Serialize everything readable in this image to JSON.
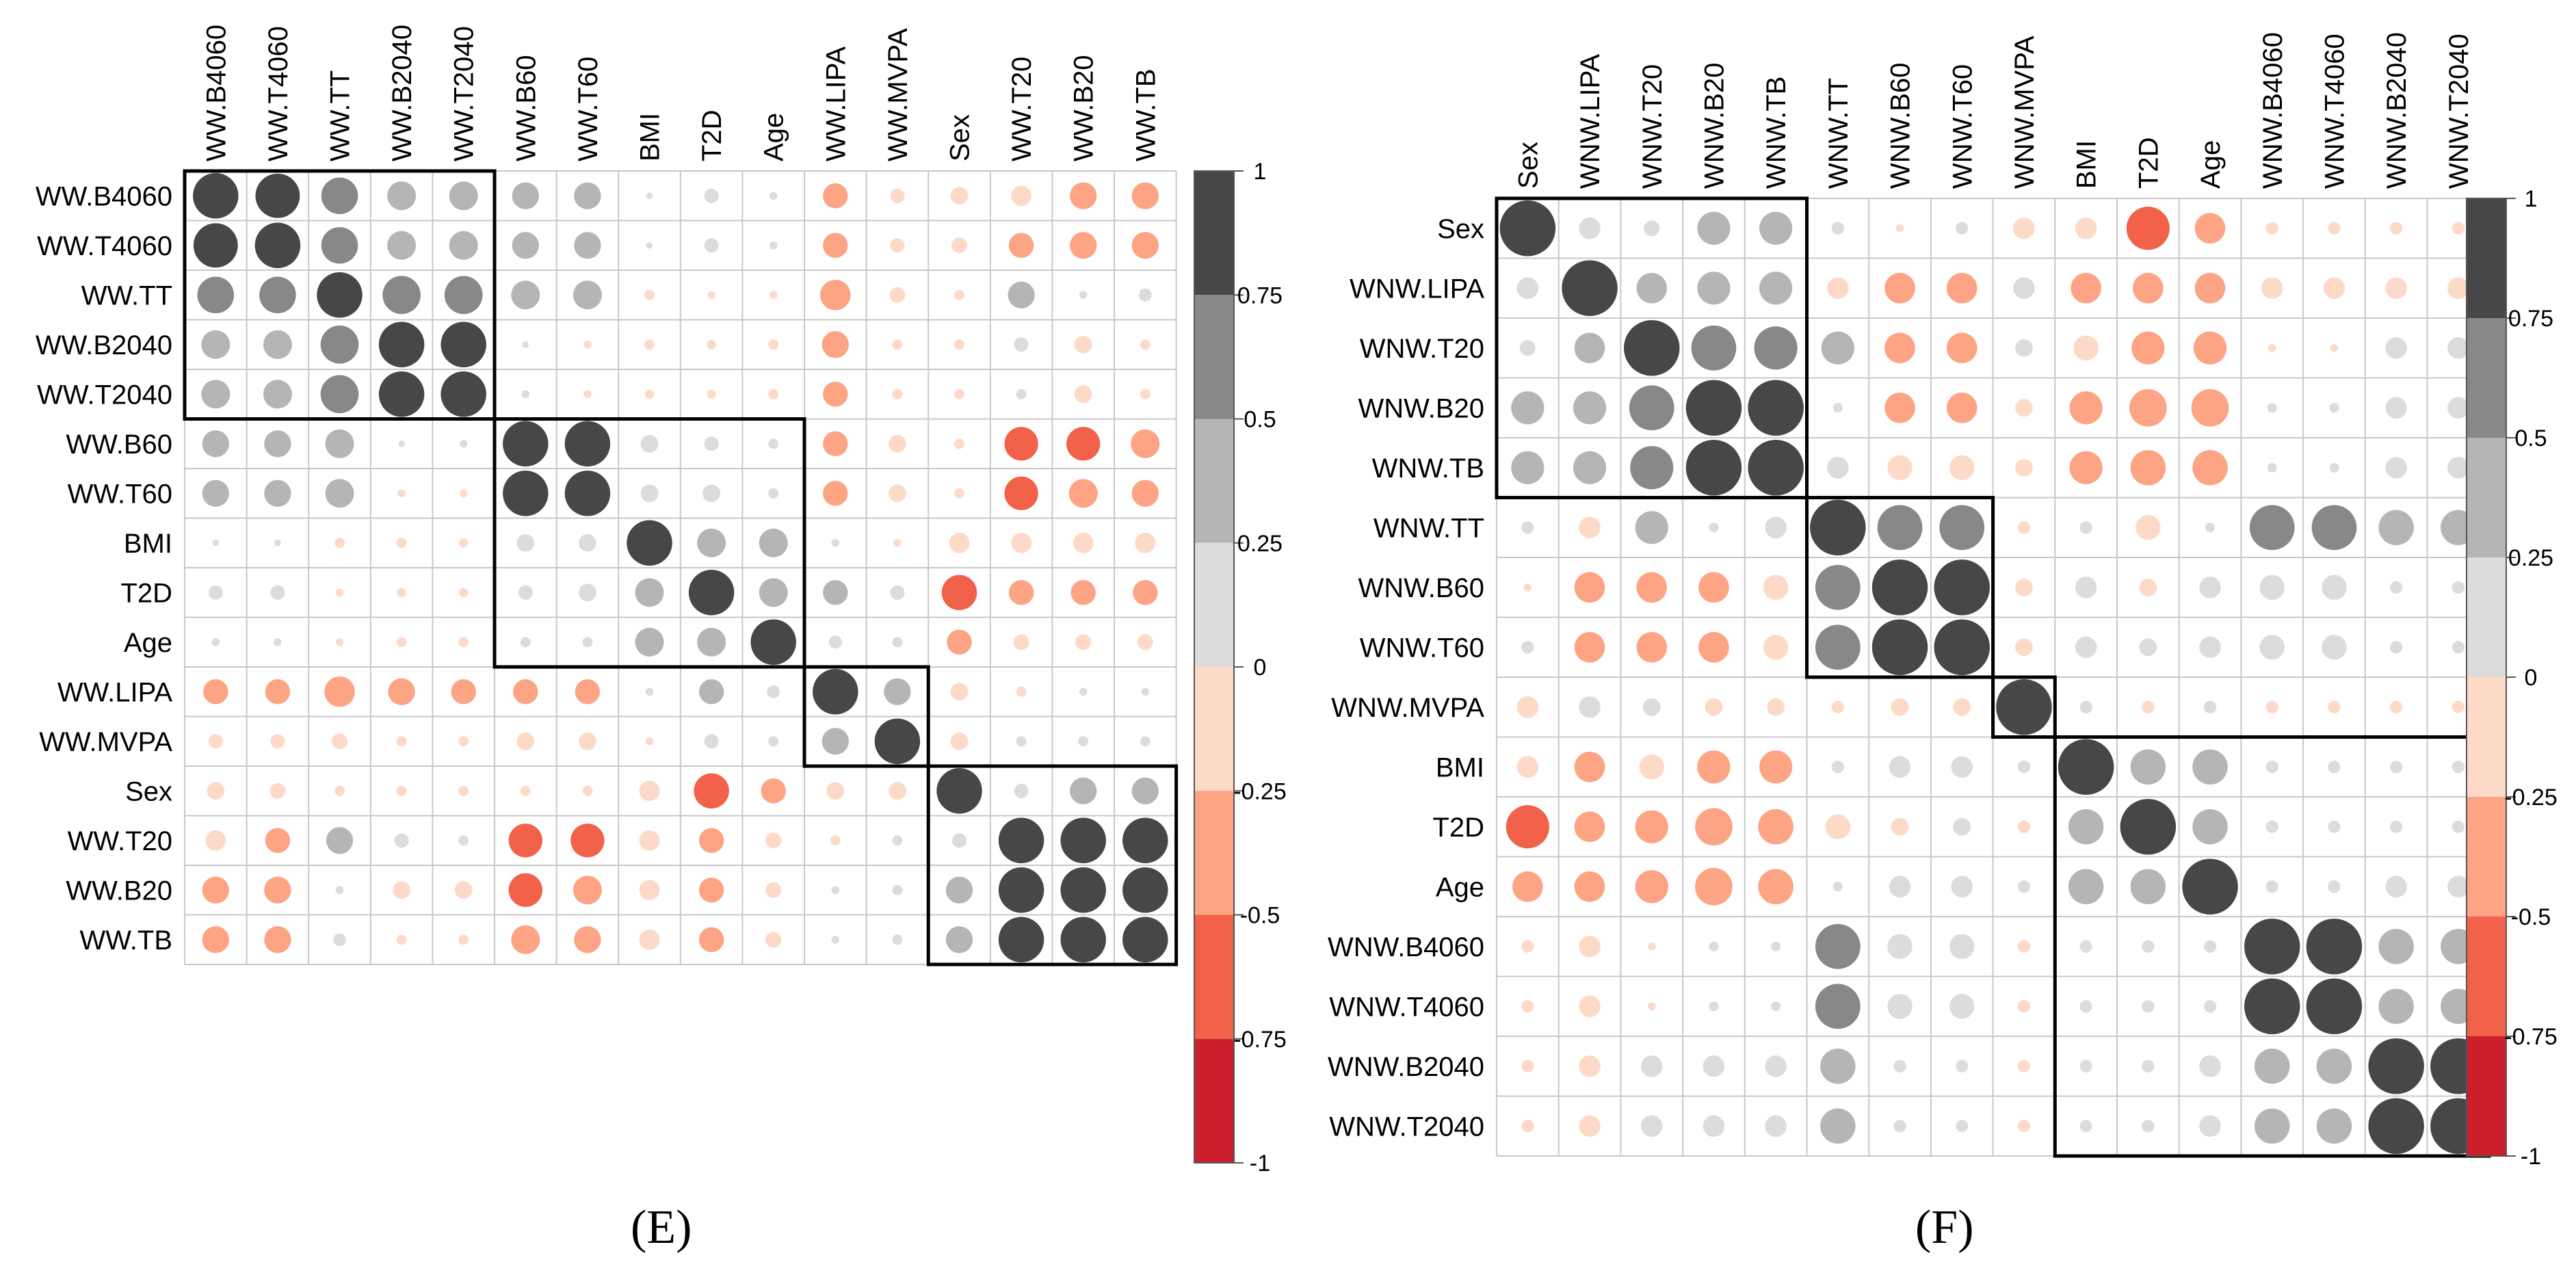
{
  "chart_data": [
    {
      "type": "heatmap",
      "subtype": "correlation-circle-plot",
      "panel": "E",
      "labels": [
        "WW.B4060",
        "WW.T4060",
        "WW.TT",
        "WW.B2040",
        "WW.T2040",
        "WW.B60",
        "WW.T60",
        "BMI",
        "T2D",
        "Age",
        "WW.LIPA",
        "WW.MVPA",
        "Sex",
        "WW.T20",
        "WW.B20",
        "WW.TB"
      ],
      "clusters": [
        [
          0,
          4
        ],
        [
          5,
          9
        ],
        [
          10,
          11
        ],
        [
          12,
          15
        ]
      ],
      "matrix": [
        [
          1,
          0.95,
          0.65,
          0.4,
          0.4,
          0.35,
          0.35,
          0.02,
          0.1,
          0.03,
          -0.3,
          -0.1,
          -0.15,
          -0.2,
          -0.35,
          -0.35
        ],
        [
          0.95,
          1,
          0.65,
          0.4,
          0.4,
          0.35,
          0.35,
          0.02,
          0.1,
          0.03,
          -0.3,
          -0.1,
          -0.12,
          -0.3,
          -0.35,
          -0.35
        ],
        [
          0.65,
          0.65,
          1,
          0.7,
          0.7,
          0.4,
          0.4,
          -0.05,
          -0.03,
          -0.03,
          -0.45,
          -0.12,
          -0.05,
          0.35,
          0.03,
          0.08
        ],
        [
          0.4,
          0.4,
          0.7,
          1,
          1,
          0.02,
          -0.03,
          -0.05,
          -0.04,
          -0.05,
          -0.35,
          -0.05,
          -0.05,
          0.1,
          -0.15,
          -0.05
        ],
        [
          0.4,
          0.4,
          0.7,
          1,
          1,
          0.03,
          -0.03,
          -0.04,
          -0.04,
          -0.05,
          -0.3,
          -0.05,
          -0.05,
          0.05,
          -0.15,
          -0.05
        ],
        [
          0.35,
          0.35,
          0.4,
          0.02,
          0.03,
          1,
          1,
          0.15,
          0.1,
          0.05,
          -0.3,
          -0.15,
          -0.05,
          -0.55,
          -0.55,
          -0.4
        ],
        [
          0.35,
          0.35,
          0.4,
          -0.03,
          -0.03,
          1,
          1,
          0.15,
          0.15,
          0.05,
          -0.3,
          -0.15,
          -0.05,
          -0.55,
          -0.4,
          -0.35
        ],
        [
          0.02,
          0.02,
          -0.05,
          -0.05,
          -0.04,
          0.15,
          0.15,
          1,
          0.4,
          0.4,
          0.03,
          -0.03,
          -0.2,
          -0.2,
          -0.2,
          -0.2
        ],
        [
          0.1,
          0.1,
          -0.03,
          -0.04,
          -0.04,
          0.1,
          0.15,
          0.4,
          1,
          0.4,
          0.3,
          0.1,
          -0.6,
          -0.3,
          -0.3,
          -0.3
        ],
        [
          0.03,
          0.03,
          -0.03,
          -0.05,
          -0.05,
          0.05,
          0.05,
          0.4,
          0.4,
          1,
          0.08,
          0.05,
          -0.3,
          -0.12,
          -0.12,
          -0.12
        ],
        [
          -0.3,
          -0.3,
          -0.45,
          -0.35,
          -0.3,
          -0.3,
          -0.3,
          0.03,
          0.3,
          0.08,
          1,
          0.35,
          -0.15,
          -0.05,
          0.03,
          0.03
        ],
        [
          -0.1,
          -0.1,
          -0.12,
          -0.05,
          -0.05,
          -0.15,
          -0.15,
          -0.03,
          0.1,
          0.05,
          0.35,
          1,
          -0.15,
          0.05,
          0.05,
          0.05
        ],
        [
          -0.15,
          -0.12,
          -0.05,
          -0.05,
          -0.05,
          -0.05,
          -0.05,
          -0.2,
          -0.6,
          -0.3,
          -0.15,
          -0.15,
          1,
          0.1,
          0.35,
          0.35
        ],
        [
          -0.2,
          -0.3,
          0.35,
          0.1,
          0.05,
          -0.55,
          -0.55,
          -0.2,
          -0.3,
          -0.12,
          -0.05,
          0.05,
          0.1,
          1,
          1,
          1
        ],
        [
          -0.35,
          -0.35,
          0.03,
          -0.15,
          -0.15,
          -0.55,
          -0.4,
          -0.2,
          -0.3,
          -0.12,
          0.03,
          0.05,
          0.35,
          1,
          1,
          1
        ],
        [
          -0.35,
          -0.35,
          0.08,
          -0.05,
          -0.05,
          -0.4,
          -0.35,
          -0.2,
          -0.3,
          -0.12,
          0.03,
          0.05,
          0.35,
          1,
          1,
          1
        ]
      ],
      "colorbar": {
        "ticks": [
          "1",
          "0.75",
          "0.5",
          "0.25",
          "0",
          "-0.25",
          "-0.5",
          "-0.75",
          "-1"
        ],
        "range": [
          -1,
          1
        ]
      },
      "caption": "(E)"
    },
    {
      "type": "heatmap",
      "subtype": "correlation-circle-plot",
      "panel": "F",
      "labels": [
        "Sex",
        "WNW.LIPA",
        "WNW.T20",
        "WNW.B20",
        "WNW.TB",
        "WNW.TT",
        "WNW.B60",
        "WNW.T60",
        "WNW.MVPA",
        "BMI",
        "T2D",
        "Age",
        "WNW.B4060",
        "WNW.T4060",
        "WNW.B2040",
        "WNW.T2040"
      ],
      "clusters": [
        [
          0,
          4
        ],
        [
          5,
          7
        ],
        [
          8,
          8
        ],
        [
          9,
          15
        ]
      ],
      "matrix": [
        [
          1,
          0.15,
          0.08,
          0.35,
          0.35,
          0.05,
          -0.02,
          0.05,
          -0.15,
          -0.15,
          -0.6,
          -0.3,
          -0.05,
          -0.05,
          -0.05,
          -0.05
        ],
        [
          0.15,
          1,
          0.3,
          0.35,
          0.35,
          -0.15,
          -0.3,
          -0.3,
          0.15,
          -0.3,
          -0.3,
          -0.3,
          -0.15,
          -0.15,
          -0.15,
          -0.15
        ],
        [
          0.08,
          0.3,
          1,
          0.65,
          0.6,
          0.35,
          -0.3,
          -0.3,
          0.1,
          -0.2,
          -0.35,
          -0.35,
          -0.02,
          -0.02,
          0.15,
          0.15
        ],
        [
          0.35,
          0.35,
          0.65,
          1,
          1,
          0.03,
          -0.3,
          -0.3,
          -0.1,
          -0.35,
          -0.45,
          -0.45,
          0.03,
          0.03,
          0.15,
          0.15
        ],
        [
          0.35,
          0.35,
          0.6,
          1,
          1,
          0.15,
          -0.2,
          -0.2,
          -0.1,
          -0.35,
          -0.4,
          -0.4,
          0.03,
          0.03,
          0.15,
          0.15
        ],
        [
          0.05,
          -0.15,
          0.35,
          0.03,
          0.15,
          1,
          0.65,
          0.65,
          -0.05,
          0.05,
          -0.2,
          0.03,
          0.65,
          0.65,
          0.4,
          0.4
        ],
        [
          -0.02,
          -0.3,
          -0.3,
          -0.3,
          -0.2,
          0.65,
          1,
          1,
          -0.1,
          0.15,
          -0.1,
          0.15,
          0.2,
          0.2,
          0.05,
          0.05
        ],
        [
          0.05,
          -0.3,
          -0.3,
          -0.3,
          -0.2,
          0.65,
          1,
          1,
          -0.1,
          0.15,
          0.1,
          0.15,
          0.2,
          0.2,
          0.05,
          0.05
        ],
        [
          -0.15,
          0.15,
          0.1,
          -0.1,
          -0.1,
          -0.05,
          -0.1,
          -0.1,
          1,
          0.05,
          -0.05,
          0.05,
          -0.05,
          -0.05,
          -0.05,
          -0.05
        ],
        [
          -0.15,
          -0.3,
          -0.2,
          -0.35,
          -0.35,
          0.05,
          0.15,
          0.15,
          0.05,
          1,
          0.4,
          0.4,
          0.05,
          0.05,
          0.05,
          0.05
        ],
        [
          -0.6,
          -0.3,
          -0.35,
          -0.45,
          -0.4,
          -0.2,
          -0.1,
          0.1,
          -0.05,
          0.4,
          1,
          0.4,
          0.05,
          0.05,
          0.05,
          0.05
        ],
        [
          -0.3,
          -0.3,
          -0.35,
          -0.45,
          -0.4,
          0.03,
          0.15,
          0.15,
          0.05,
          0.4,
          0.4,
          1,
          0.05,
          0.05,
          0.15,
          0.15
        ],
        [
          -0.05,
          -0.15,
          -0.02,
          0.03,
          0.03,
          0.65,
          0.2,
          0.2,
          -0.05,
          0.05,
          0.05,
          0.05,
          1,
          1,
          0.4,
          0.4
        ],
        [
          -0.05,
          -0.15,
          -0.02,
          0.03,
          0.03,
          0.65,
          0.2,
          0.2,
          -0.05,
          0.05,
          0.05,
          0.05,
          1,
          1,
          0.4,
          0.4
        ],
        [
          -0.05,
          -0.15,
          0.15,
          0.15,
          0.15,
          0.4,
          0.05,
          0.05,
          -0.05,
          0.05,
          0.05,
          0.15,
          0.4,
          0.4,
          1,
          1
        ],
        [
          -0.05,
          -0.15,
          0.15,
          0.15,
          0.15,
          0.4,
          0.05,
          0.05,
          -0.05,
          0.05,
          0.05,
          0.15,
          0.4,
          0.4,
          1,
          1
        ]
      ],
      "colorbar": {
        "ticks": [
          "1",
          "0.75",
          "0.5",
          "0.25",
          "0",
          "-0.25",
          "-0.5",
          "-0.75",
          "-1"
        ],
        "range": [
          -1,
          1
        ]
      },
      "caption": "(F)"
    }
  ],
  "colors": {
    "pos": [
      "#dcdcdc",
      "#b5b5b5",
      "#888888",
      "#474747"
    ],
    "neg": [
      "#fddac8",
      "#fca484",
      "#f26149",
      "#cb1f2c"
    ],
    "grid": "#c8c8c8",
    "cluster": "#000000"
  }
}
